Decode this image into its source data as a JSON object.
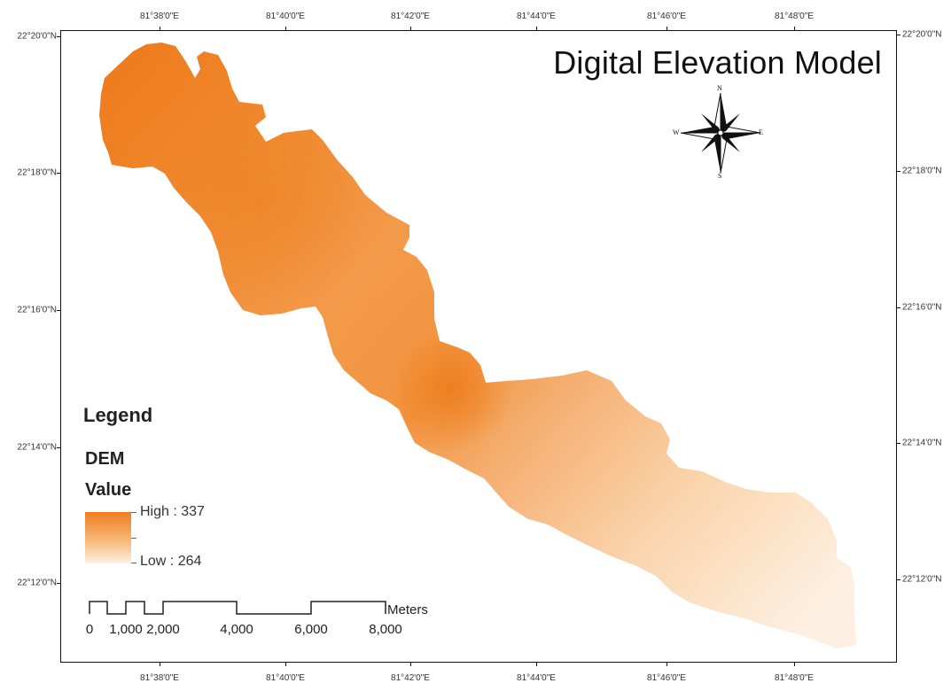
{
  "title": "Digital Elevation Model",
  "graticule": {
    "longitude_labels": [
      "81°38'0\"E",
      "81°40'0\"E",
      "81°42'0\"E",
      "81°44'0\"E",
      "81°46'0\"E",
      "81°48'0\"E"
    ],
    "latitude_labels": [
      "22°20'0\"N",
      "22°18'0\"N",
      "22°16'0\"N",
      "22°14'0\"N",
      "22°12'0\"N"
    ]
  },
  "north_arrow": {
    "n": "N",
    "s": "S",
    "e": "E",
    "w": "W"
  },
  "legend": {
    "title": "Legend",
    "layer": "DEM",
    "field": "Value",
    "high_label": "High : 337",
    "low_label": "Low : 264",
    "high_color": "#ee7d1f",
    "low_color": "#fdf0e2"
  },
  "scale_bar": {
    "unit": "Meters",
    "labels": [
      "0",
      "1,000",
      "2,000",
      "4,000",
      "6,000",
      "8,000"
    ]
  },
  "colors": {
    "dem_high": "#ee7d1f",
    "dem_mid": "#f4a95f",
    "dem_low": "#fdf0e2",
    "frame": "#111111"
  }
}
